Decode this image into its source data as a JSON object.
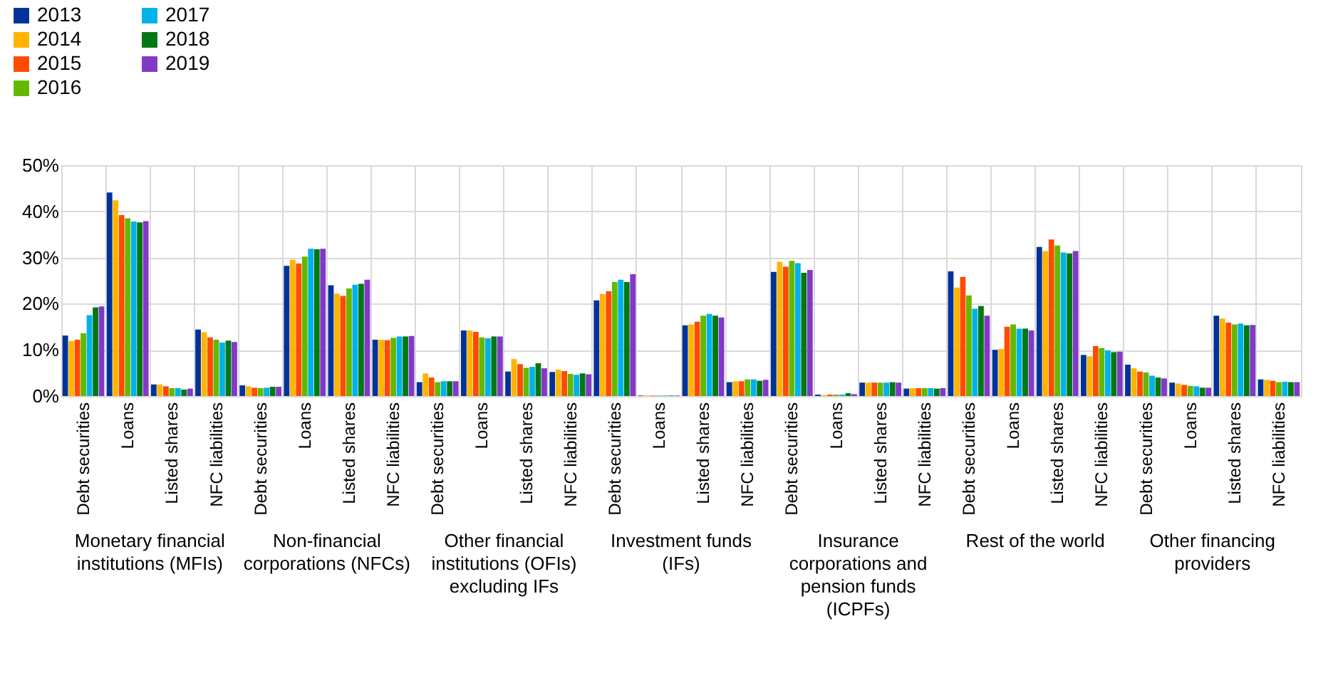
{
  "chart_data": {
    "type": "bar",
    "categories": [
      "Debt securities",
      "Loans",
      "Listed shares",
      "NFC liabilities",
      "Debt securities",
      "Loans",
      "Listed shares",
      "NFC liabilities",
      "Debt securities",
      "Loans",
      "Listed shares",
      "NFC liabilities",
      "Debt securities",
      "Loans",
      "Listed shares",
      "NFC liabilities",
      "Debt securities",
      "Loans",
      "Listed shares",
      "NFC liabilities",
      "Debt securities",
      "Loans",
      "Listed shares",
      "NFC liabilities",
      "Debt securities",
      "Loans",
      "Listed shares",
      "NFC liabilities"
    ],
    "series": [
      {
        "name": "2013",
        "color": "#003299",
        "values": [
          13.1,
          44.1,
          2.5,
          14.4,
          2.3,
          28.2,
          24.0,
          12.2,
          3.0,
          14.2,
          5.3,
          5.2,
          20.7,
          0.1,
          15.3,
          3.0,
          26.9,
          0.3,
          2.9,
          1.6,
          27.0,
          10.0,
          32.3,
          8.9,
          6.8,
          2.9,
          17.4,
          3.6
        ]
      },
      {
        "name": "2014",
        "color": "#ffb400",
        "values": [
          11.9,
          42.4,
          2.5,
          13.8,
          2.1,
          29.5,
          22.2,
          12.2,
          4.9,
          14.2,
          8.0,
          5.7,
          22.1,
          0.1,
          15.5,
          3.2,
          29.1,
          0.2,
          2.9,
          1.7,
          23.5,
          10.2,
          31.4,
          8.6,
          6.0,
          2.7,
          16.8,
          3.5
        ]
      },
      {
        "name": "2015",
        "color": "#ff4b00",
        "values": [
          12.2,
          39.2,
          2.1,
          12.7,
          1.8,
          28.7,
          21.7,
          12.1,
          4.0,
          13.9,
          6.9,
          5.4,
          22.7,
          0.1,
          16.1,
          3.2,
          28.0,
          0.3,
          2.9,
          1.7,
          25.8,
          15.0,
          33.9,
          10.8,
          5.3,
          2.4,
          15.9,
          3.3
        ]
      },
      {
        "name": "2016",
        "color": "#65b800",
        "values": [
          13.6,
          38.5,
          1.7,
          12.2,
          1.7,
          30.2,
          23.3,
          12.6,
          3.0,
          12.7,
          6.1,
          4.8,
          24.7,
          0.1,
          17.4,
          3.6,
          29.3,
          0.3,
          2.9,
          1.7,
          21.8,
          15.5,
          32.6,
          10.4,
          5.1,
          2.2,
          15.5,
          3.0
        ]
      },
      {
        "name": "2017",
        "color": "#00b1ea",
        "values": [
          17.5,
          37.8,
          1.7,
          11.6,
          1.8,
          31.9,
          24.1,
          12.9,
          3.2,
          12.5,
          6.3,
          4.6,
          25.2,
          0.1,
          17.8,
          3.6,
          28.8,
          0.3,
          2.9,
          1.7,
          18.9,
          14.6,
          31.1,
          9.9,
          4.4,
          2.1,
          15.7,
          3.1
        ]
      },
      {
        "name": "2018",
        "color": "#007816",
        "values": [
          19.2,
          37.6,
          1.4,
          12.0,
          2.0,
          31.8,
          24.3,
          12.9,
          3.2,
          12.9,
          7.1,
          4.9,
          24.7,
          0.1,
          17.4,
          3.3,
          26.7,
          0.6,
          3.0,
          1.6,
          19.5,
          14.6,
          30.9,
          9.5,
          4.0,
          1.8,
          15.3,
          3.0
        ]
      },
      {
        "name": "2019",
        "color": "#8139c6",
        "values": [
          19.4,
          37.9,
          1.6,
          11.7,
          2.0,
          31.9,
          25.2,
          13.0,
          3.2,
          12.9,
          6.0,
          4.7,
          26.4,
          0.1,
          17.0,
          3.5,
          27.3,
          0.4,
          2.9,
          1.7,
          17.4,
          14.2,
          31.4,
          9.6,
          3.8,
          1.8,
          15.4,
          3.0
        ]
      }
    ],
    "annotations": [
      "Monetary financial institutions (MFIs)",
      "Non-financial corporations (NFCs)",
      "Other financial institutions (OFIs) excluding IFs",
      "Investment funds (IFs)",
      "Insurance corporations and pension funds (ICPFs)",
      "Rest of the world",
      "Other financing providers"
    ],
    "ylim": [
      0,
      50
    ],
    "yticks": [
      {
        "value": 0,
        "label": "0%"
      },
      {
        "value": 10,
        "label": "10%"
      },
      {
        "value": 20,
        "label": "20%"
      },
      {
        "value": 30,
        "label": "30%"
      },
      {
        "value": 40,
        "label": "40%"
      },
      {
        "value": 50,
        "label": "50%"
      }
    ],
    "grid": true,
    "legend": "top left"
  }
}
